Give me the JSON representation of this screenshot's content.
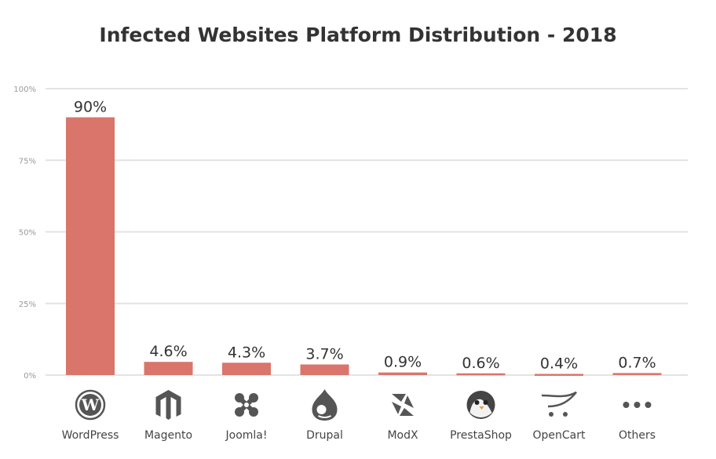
{
  "chart_data": {
    "type": "bar",
    "title": "Infected Websites Platform Distribution - 2018",
    "categories": [
      "WordPress",
      "Magento",
      "Joomla!",
      "Drupal",
      "ModX",
      "PrestaShop",
      "OpenCart",
      "Others"
    ],
    "values": [
      90,
      4.6,
      4.3,
      3.7,
      0.9,
      0.6,
      0.4,
      0.7
    ],
    "data_labels": [
      "90%",
      "4.6%",
      "4.3%",
      "3.7%",
      "0.9%",
      "0.6%",
      "0.4%",
      "0.7%"
    ],
    "ylim": [
      0,
      100
    ],
    "yticks": [
      0,
      25,
      50,
      75,
      100
    ],
    "ytick_labels": [
      "0%",
      "25%",
      "50%",
      "75%",
      "100%"
    ],
    "xlabel": "",
    "ylabel": "",
    "grid": true,
    "bar_color": "#d9756b",
    "icons": [
      "wordpress-icon",
      "magento-icon",
      "joomla-icon",
      "drupal-icon",
      "modx-icon",
      "prestashop-icon",
      "opencart-icon",
      "others-icon"
    ]
  }
}
